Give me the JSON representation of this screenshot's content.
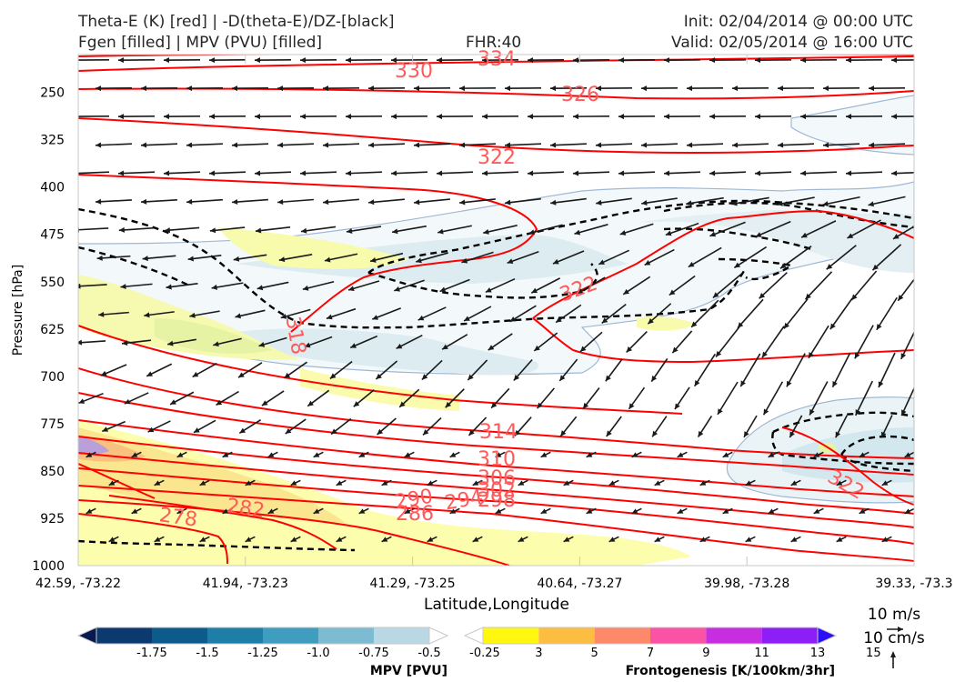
{
  "header": {
    "title_line1": "Theta-E (K) [red] | -D(theta-E)/DZ-[black]",
    "title_line2": "Fgen [filled] | MPV (PVU) [filled]",
    "fhr": "FHR:40",
    "init": "Init: 02/04/2014 @ 00:00 UTC",
    "valid": "Valid: 02/05/2014 @ 16:00 UTC"
  },
  "chart_data": {
    "type": "cross-section",
    "xlabel": "Latitude,Longitude",
    "ylabel": "Pressure [hPa]",
    "x_ticks": [
      "42.59, -73.22",
      "41.94, -73.23",
      "41.29, -73.25",
      "40.64, -73.27",
      "39.98, -73.28",
      "39.33, -73.3"
    ],
    "y_ticks": [
      250,
      325,
      400,
      475,
      550,
      625,
      700,
      775,
      850,
      925,
      1000
    ],
    "ylim": [
      1000,
      190
    ],
    "theta_e_labels": [
      "334",
      "330",
      "326",
      "322",
      "322",
      "318",
      "314",
      "310",
      "306",
      "302",
      "298",
      "294",
      "290",
      "286",
      "282",
      "278",
      "322"
    ],
    "vector_key": {
      "horizontal": "10 m/s",
      "vertical": "10 cm/s"
    },
    "colorbars": [
      {
        "title": "MPV [PVU]",
        "labels": [
          "-1.75",
          "-1.5",
          "-1.25",
          "-1.0",
          "-0.75",
          "-0.5",
          "-0.25"
        ],
        "colors": [
          "#08194f",
          "#0c3a6e",
          "#0d5a8d",
          "#1d7fa8",
          "#3f9dbf",
          "#7dbbd3",
          "#bad8e3",
          "#ffffff"
        ]
      },
      {
        "title": "Frontogenesis [K/100km/3hr]",
        "labels": [
          "3",
          "5",
          "7",
          "9",
          "11",
          "13",
          "15"
        ],
        "colors": [
          "#ffffff",
          "#fff710",
          "#fdbd41",
          "#fc8a6a",
          "#fa52a5",
          "#c62ee0",
          "#8d1ef5",
          "#2a10f5"
        ]
      }
    ],
    "colors": {
      "theta_e": "#ff0000",
      "ddz": "#000000",
      "wind": "#1a1a1a"
    }
  }
}
